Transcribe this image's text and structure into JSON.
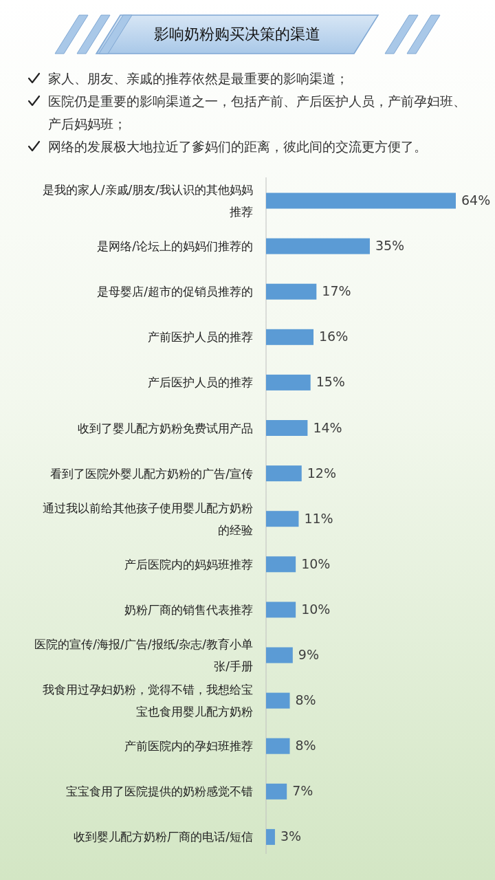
{
  "chart_data": {
    "type": "bar",
    "orientation": "horizontal",
    "title": "影响奶粉购买决策的渠道",
    "annotations": [
      "家人、朋友、亲戚的推荐依然是最重要的影响渠道；",
      "医院仍是重要的影响渠道之一，包括产前、产后医护人员，产前孕妇班、产后妈妈班；",
      "网络的发展极大地拉近了爹妈们的距离，彼此间的交流更方便了。"
    ],
    "categories": [
      "是我的家人/亲戚/朋友/我认识的其他妈妈推荐",
      "是网络/论坛上的妈妈们推荐的",
      "是母婴店/超市的促销员推荐的",
      "产前医护人员的推荐",
      "产后医护人员的推荐",
      "收到了婴儿配方奶粉免费试用产品",
      "看到了医院外婴儿配方奶粉的广告/宣传",
      "通过我以前给其他孩子使用婴儿配方奶粉的经验",
      "产后医院内的妈妈班推荐",
      "奶粉厂商的销售代表推荐",
      "医院的宣传/海报/广告/报纸/杂志/教育小单张/手册",
      "我食用过孕妇奶粉，觉得不错，我想给宝宝也食用婴儿配方奶粉",
      "产前医院内的孕妇班推荐",
      "宝宝食用了医院提供的奶粉感觉不错",
      "收到婴儿配方奶粉厂商的电话/短信"
    ],
    "values": [
      64,
      35,
      17,
      16,
      15,
      14,
      12,
      11,
      10,
      10,
      9,
      8,
      8,
      7,
      3
    ],
    "value_labels": [
      "64%",
      "35%",
      "17%",
      "16%",
      "15%",
      "14%",
      "12%",
      "11%",
      "10%",
      "10%",
      "9%",
      "8%",
      "8%",
      "7%",
      "3%"
    ],
    "color": "#5b9bd5"
  }
}
